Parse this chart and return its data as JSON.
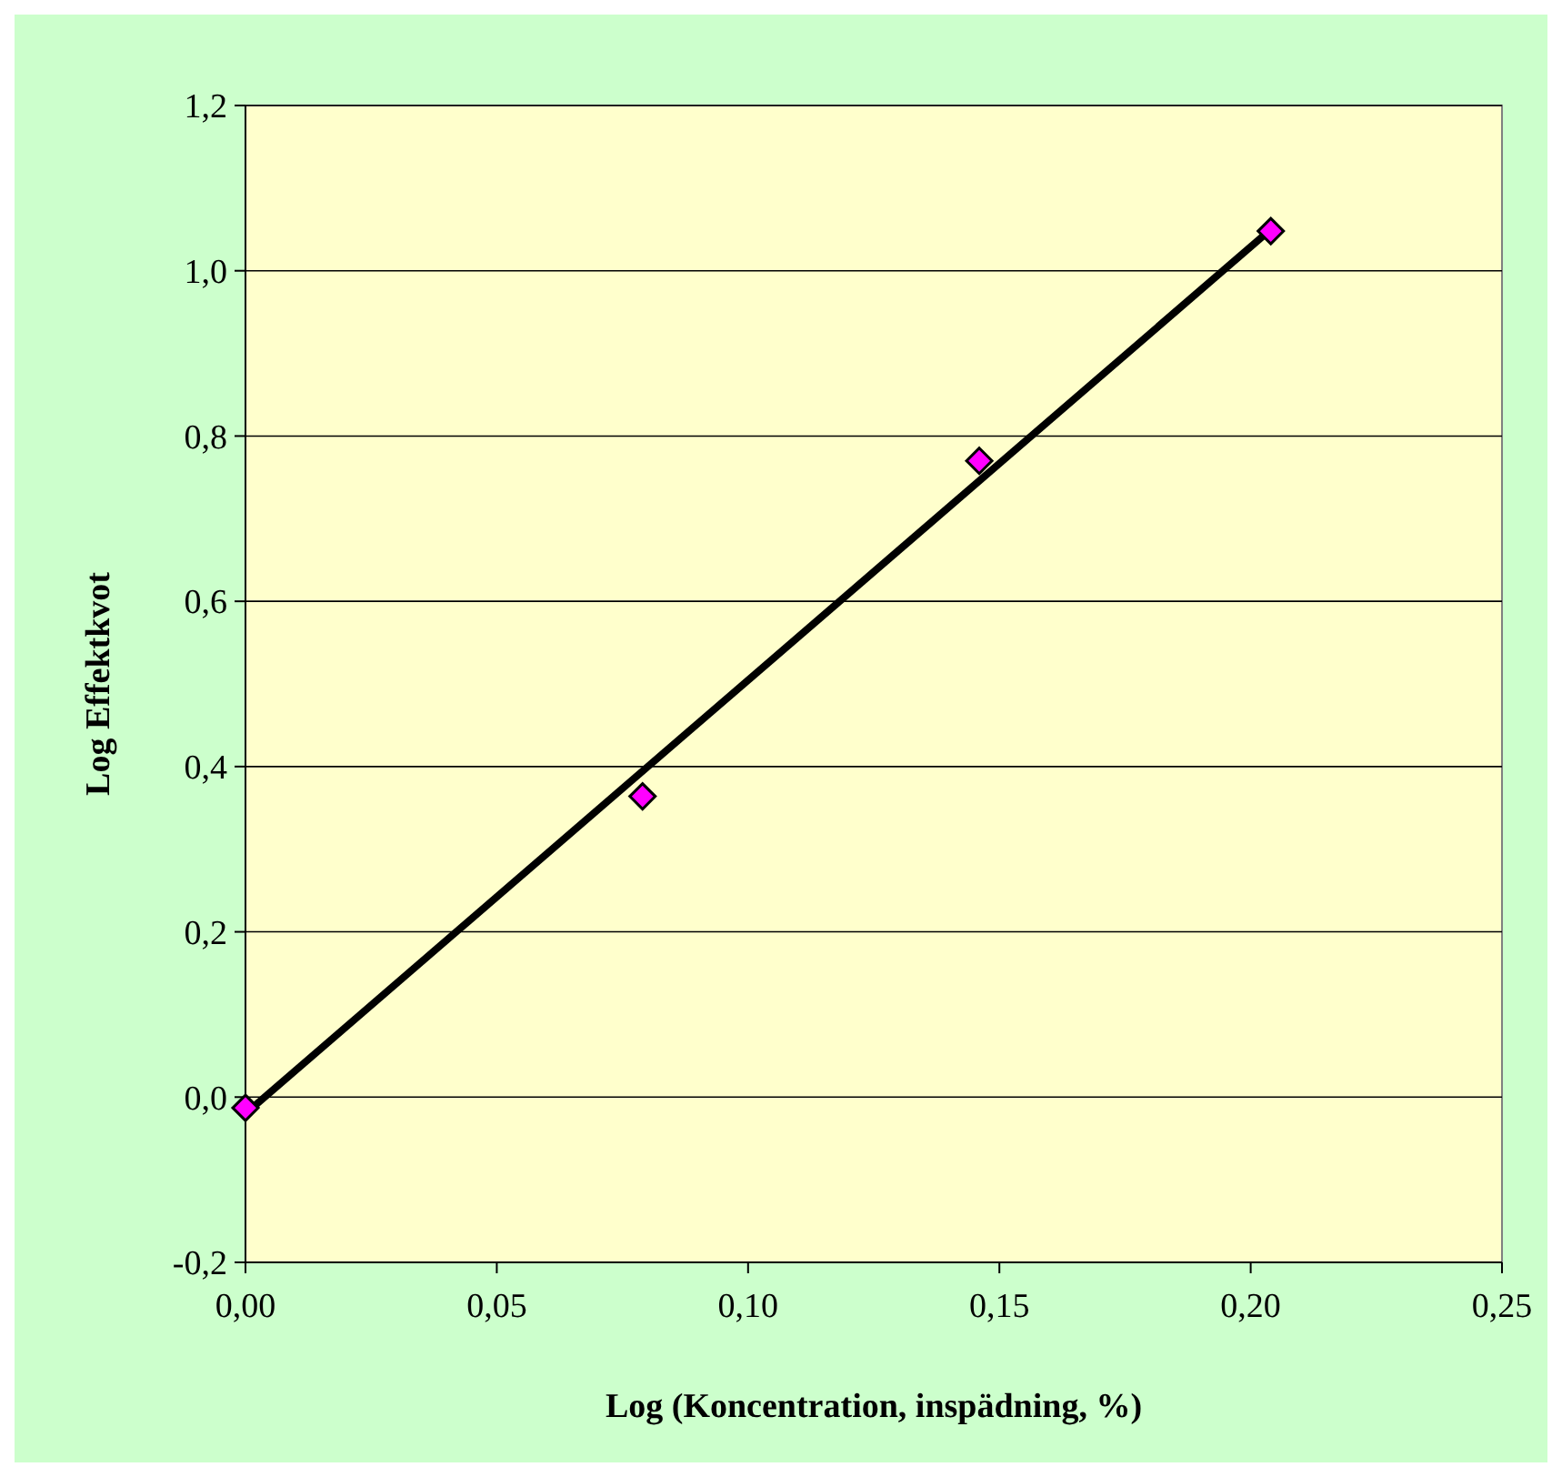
{
  "chart_data": {
    "type": "scatter",
    "xlabel": "Log (Koncentration, inspädning, %)",
    "ylabel": "Log Effektkvot",
    "xlim": [
      0,
      0.25
    ],
    "ylim": [
      -0.2,
      1.2
    ],
    "xticks": [
      {
        "value": 0,
        "label": "0,00"
      },
      {
        "value": 0.05,
        "label": "0,05"
      },
      {
        "value": 0.1,
        "label": "0,10"
      },
      {
        "value": 0.15,
        "label": "0,15"
      },
      {
        "value": 0.2,
        "label": "0,20"
      },
      {
        "value": 0.25,
        "label": "0,25"
      }
    ],
    "yticks": [
      {
        "value": -0.2,
        "label": "-0,2"
      },
      {
        "value": 0,
        "label": "0,0"
      },
      {
        "value": 0.2,
        "label": "0,2"
      },
      {
        "value": 0.4,
        "label": "0,4"
      },
      {
        "value": 0.6,
        "label": "0,6"
      },
      {
        "value": 0.8,
        "label": "0,8"
      },
      {
        "value": 1,
        "label": "1,0"
      },
      {
        "value": 1.2,
        "label": "1,2"
      }
    ],
    "grid": "y",
    "series": [
      {
        "type": "line",
        "marker": "none",
        "color": "#000000",
        "x": [
          0,
          0.204
        ],
        "values": [
          -0.02,
          1.05
        ]
      },
      {
        "marker": "diamond",
        "color": "#ff00ff",
        "x": [
          0,
          0.079,
          0.146,
          0.204
        ],
        "values": [
          -0.013,
          0.364,
          0.77,
          1.048
        ]
      }
    ]
  }
}
